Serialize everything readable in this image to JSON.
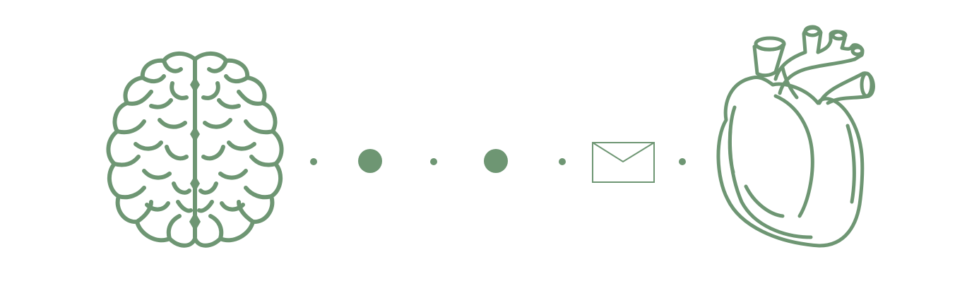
{
  "scene": {
    "ink_color": "#6e9673",
    "background_color": "#ffffff",
    "icons": [
      {
        "name": "brain-icon"
      },
      {
        "name": "envelope-icon"
      },
      {
        "name": "heart-icon"
      }
    ],
    "connector": [
      "small-dot",
      "large-dot",
      "small-dot",
      "large-dot",
      "small-dot",
      "envelope",
      "small-dot"
    ]
  }
}
